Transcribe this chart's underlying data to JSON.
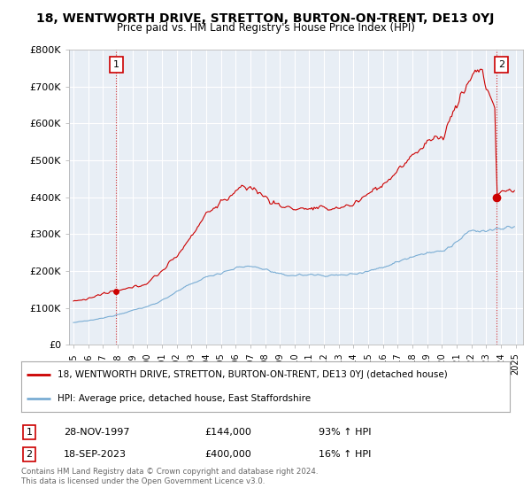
{
  "title": "18, WENTWORTH DRIVE, STRETTON, BURTON-ON-TRENT, DE13 0YJ",
  "subtitle": "Price paid vs. HM Land Registry's House Price Index (HPI)",
  "ylim": [
    0,
    800000
  ],
  "yticks": [
    0,
    100000,
    200000,
    300000,
    400000,
    500000,
    600000,
    700000,
    800000
  ],
  "ytick_labels": [
    "£0",
    "£100K",
    "£200K",
    "£300K",
    "£400K",
    "£500K",
    "£600K",
    "£700K",
    "£800K"
  ],
  "xlim_start": 1994.7,
  "xlim_end": 2025.5,
  "hpi_color": "#7aadd4",
  "price_color": "#cc0000",
  "marker1_date": 1997.91,
  "marker1_price": 144000,
  "marker1_label": "1",
  "marker2_date": 2023.72,
  "marker2_price": 400000,
  "marker2_label": "2",
  "legend_line1": "18, WENTWORTH DRIVE, STRETTON, BURTON-ON-TRENT, DE13 0YJ (detached house)",
  "legend_line2": "HPI: Average price, detached house, East Staffordshire",
  "table_row1_num": "1",
  "table_row1_date": "28-NOV-1997",
  "table_row1_price": "£144,000",
  "table_row1_hpi": "93% ↑ HPI",
  "table_row2_num": "2",
  "table_row2_date": "18-SEP-2023",
  "table_row2_price": "£400,000",
  "table_row2_hpi": "16% ↑ HPI",
  "footer": "Contains HM Land Registry data © Crown copyright and database right 2024.\nThis data is licensed under the Open Government Licence v3.0.",
  "bg_color": "#ffffff",
  "plot_bg_color": "#e8eef5",
  "grid_color": "#ffffff",
  "title_fontsize": 10,
  "subtitle_fontsize": 8.5,
  "axis_fontsize": 8,
  "xticks": [
    1995,
    1996,
    1997,
    1998,
    1999,
    2000,
    2001,
    2002,
    2003,
    2004,
    2005,
    2006,
    2007,
    2008,
    2009,
    2010,
    2011,
    2012,
    2013,
    2014,
    2015,
    2016,
    2017,
    2018,
    2019,
    2020,
    2021,
    2022,
    2023,
    2024,
    2025
  ]
}
